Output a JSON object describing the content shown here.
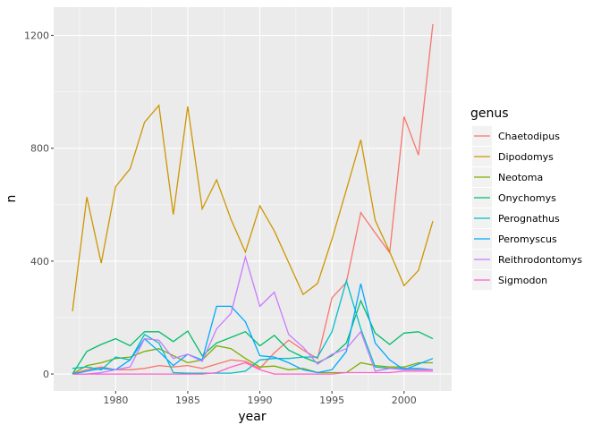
{
  "chart_data": {
    "type": "line",
    "title": "",
    "xlabel": "year",
    "ylabel": "n",
    "xlim": [
      1975.7,
      2003.3
    ],
    "ylim": [
      -60,
      1300
    ],
    "xticks": [
      1980,
      1985,
      1990,
      1995,
      2000
    ],
    "yticks": [
      0,
      400,
      800,
      1200
    ],
    "grid": true,
    "legend": {
      "title": "genus",
      "placement": "right"
    },
    "x": [
      1977,
      1978,
      1979,
      1980,
      1981,
      1982,
      1983,
      1984,
      1985,
      1986,
      1987,
      1988,
      1989,
      1990,
      1991,
      1992,
      1993,
      1994,
      1995,
      1996,
      1997,
      1998,
      1999,
      2000,
      2001,
      2002
    ],
    "series": [
      {
        "name": "Chaetodipus",
        "color": "#F8766D",
        "values": [
          0,
          15,
          25,
          15,
          15,
          20,
          30,
          25,
          30,
          20,
          35,
          50,
          45,
          20,
          75,
          120,
          85,
          55,
          270,
          325,
          572,
          500,
          430,
          912,
          776,
          1240
        ]
      },
      {
        "name": "Dipodomys",
        "color": "#CD9600",
        "values": [
          222,
          627,
          393,
          664,
          727,
          892,
          952,
          565,
          948,
          585,
          688,
          548,
          432,
          596,
          507,
          395,
          282,
          321,
          478,
          653,
          830,
          545,
          433,
          313,
          367,
          542
        ]
      },
      {
        "name": "Neotoma",
        "color": "#7CAE00",
        "values": [
          0,
          30,
          40,
          55,
          60,
          80,
          90,
          65,
          40,
          50,
          100,
          90,
          55,
          25,
          28,
          15,
          20,
          5,
          5,
          5,
          40,
          30,
          25,
          25,
          40,
          40
        ]
      },
      {
        "name": "Onychomys",
        "color": "#00BE67",
        "values": [
          0,
          80,
          105,
          125,
          100,
          150,
          150,
          115,
          152,
          65,
          110,
          130,
          150,
          100,
          137,
          85,
          60,
          40,
          65,
          110,
          260,
          145,
          105,
          145,
          150,
          125
        ]
      },
      {
        "name": "Perognathus",
        "color": "#00BFC4",
        "values": [
          20,
          25,
          15,
          60,
          50,
          140,
          110,
          5,
          3,
          3,
          3,
          3,
          10,
          50,
          55,
          55,
          60,
          60,
          150,
          330,
          160,
          25,
          20,
          20,
          20,
          15
        ]
      },
      {
        "name": "Peromyscus",
        "color": "#00A9FF",
        "values": [
          0,
          10,
          20,
          15,
          50,
          125,
          80,
          30,
          70,
          50,
          240,
          240,
          185,
          65,
          60,
          40,
          15,
          5,
          15,
          80,
          320,
          110,
          50,
          15,
          35,
          55
        ]
      },
      {
        "name": "Reithrodontomys",
        "color": "#C77CFF",
        "values": [
          0,
          0,
          5,
          15,
          25,
          125,
          120,
          55,
          70,
          45,
          160,
          215,
          415,
          240,
          290,
          140,
          95,
          35,
          70,
          90,
          150,
          10,
          20,
          15,
          15,
          15
        ]
      },
      {
        "name": "Sigmodon",
        "color": "#FF61CC",
        "values": [
          0,
          0,
          0,
          0,
          0,
          0,
          0,
          0,
          0,
          0,
          5,
          25,
          40,
          15,
          0,
          0,
          0,
          0,
          0,
          5,
          5,
          5,
          5,
          10,
          10,
          10
        ]
      }
    ]
  }
}
